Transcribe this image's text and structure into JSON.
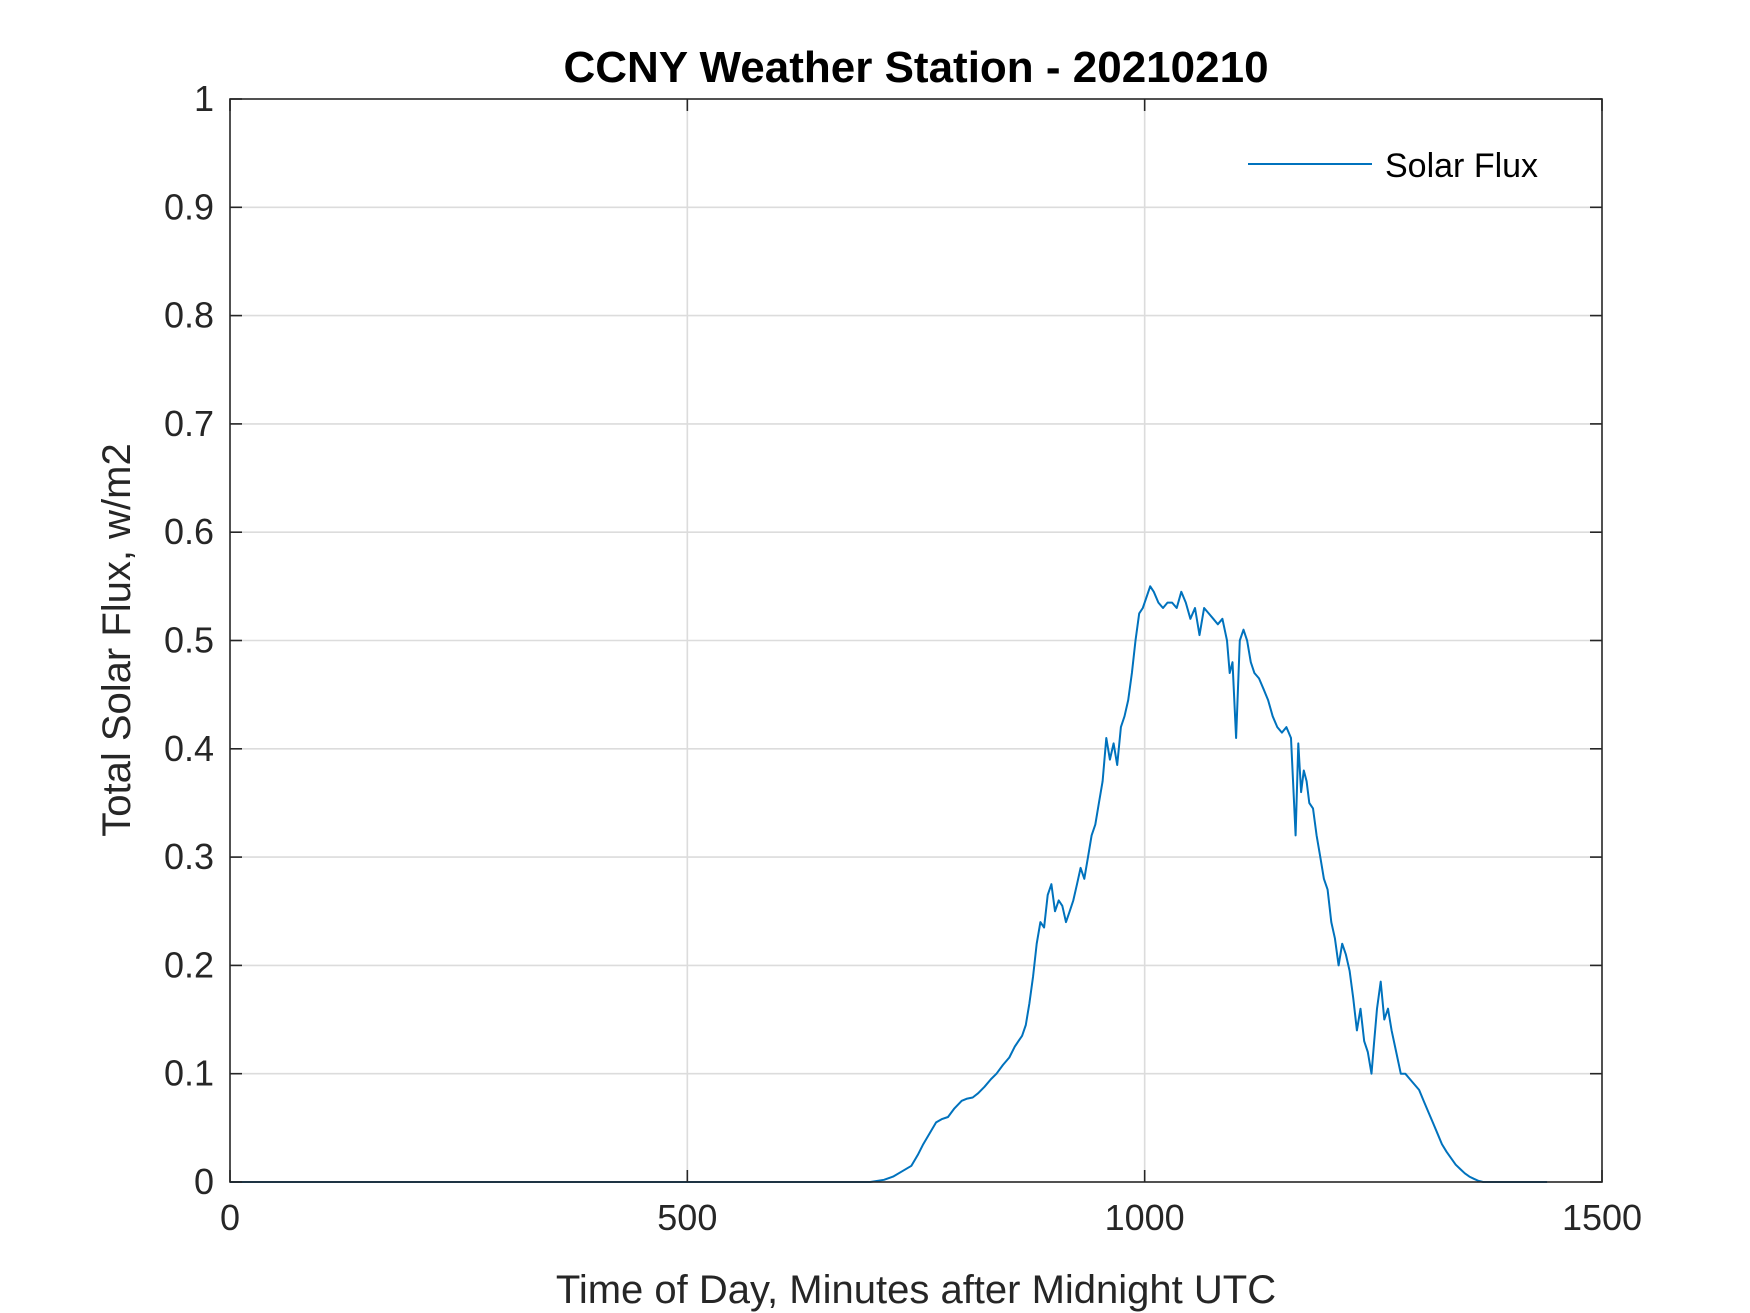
{
  "chart_data": {
    "type": "line",
    "title": "CCNY Weather Station - 20210210",
    "xlabel": "Time of Day, Minutes after Midnight UTC",
    "ylabel": "Total Solar Flux, w/m2",
    "xlim": [
      0,
      1500
    ],
    "ylim": [
      0,
      1
    ],
    "xticks": [
      0,
      500,
      1000,
      1500
    ],
    "xtick_labels": [
      "0",
      "500",
      "1000",
      "1500"
    ],
    "yticks": [
      0,
      0.1,
      0.2,
      0.3,
      0.4,
      0.5,
      0.6,
      0.7,
      0.8,
      0.9,
      1
    ],
    "ytick_labels": [
      "0",
      "0.1",
      "0.2",
      "0.3",
      "0.4",
      "0.5",
      "0.6",
      "0.7",
      "0.8",
      "0.9",
      "1"
    ],
    "grid": true,
    "legend": {
      "position": "top-right",
      "entries": [
        "Solar Flux"
      ]
    },
    "series": [
      {
        "name": "Solar Flux",
        "color": "#0072BD",
        "x": [
          0,
          100,
          200,
          300,
          400,
          500,
          600,
          700,
          715,
          725,
          735,
          745,
          752,
          758,
          765,
          772,
          778,
          785,
          792,
          800,
          806,
          812,
          818,
          825,
          832,
          838,
          845,
          852,
          858,
          862,
          866,
          870,
          874,
          878,
          882,
          886,
          890,
          894,
          898,
          902,
          906,
          910,
          914,
          918,
          922,
          926,
          930,
          934,
          938,
          942,
          946,
          950,
          954,
          958,
          962,
          966,
          970,
          974,
          978,
          982,
          986,
          990,
          994,
          998,
          1002,
          1006,
          1010,
          1015,
          1020,
          1025,
          1030,
          1035,
          1040,
          1045,
          1050,
          1055,
          1060,
          1065,
          1070,
          1075,
          1080,
          1085,
          1090,
          1093,
          1096,
          1100,
          1104,
          1108,
          1112,
          1116,
          1120,
          1125,
          1130,
          1135,
          1140,
          1145,
          1150,
          1155,
          1160,
          1165,
          1168,
          1171,
          1174,
          1177,
          1180,
          1184,
          1188,
          1192,
          1196,
          1200,
          1204,
          1208,
          1212,
          1216,
          1220,
          1224,
          1228,
          1232,
          1236,
          1240,
          1244,
          1248,
          1251,
          1254,
          1258,
          1262,
          1266,
          1270,
          1275,
          1280,
          1285,
          1290,
          1295,
          1300,
          1305,
          1310,
          1315,
          1320,
          1325,
          1330,
          1335,
          1340,
          1345,
          1350,
          1355,
          1360,
          1365,
          1370,
          1380,
          1400,
          1420,
          1440
        ],
        "y": [
          0,
          0,
          0,
          0,
          0,
          0,
          0,
          0,
          0.002,
          0.005,
          0.01,
          0.015,
          0.025,
          0.035,
          0.045,
          0.055,
          0.058,
          0.06,
          0.068,
          0.075,
          0.077,
          0.078,
          0.082,
          0.088,
          0.095,
          0.1,
          0.108,
          0.115,
          0.125,
          0.13,
          0.135,
          0.145,
          0.165,
          0.19,
          0.22,
          0.24,
          0.235,
          0.265,
          0.275,
          0.25,
          0.26,
          0.255,
          0.24,
          0.25,
          0.26,
          0.275,
          0.29,
          0.28,
          0.3,
          0.32,
          0.33,
          0.35,
          0.37,
          0.41,
          0.39,
          0.405,
          0.385,
          0.42,
          0.43,
          0.445,
          0.47,
          0.5,
          0.525,
          0.53,
          0.54,
          0.55,
          0.545,
          0.535,
          0.53,
          0.535,
          0.535,
          0.53,
          0.545,
          0.535,
          0.52,
          0.53,
          0.505,
          0.53,
          0.525,
          0.52,
          0.515,
          0.52,
          0.5,
          0.47,
          0.48,
          0.41,
          0.5,
          0.51,
          0.5,
          0.48,
          0.47,
          0.465,
          0.455,
          0.445,
          0.43,
          0.42,
          0.415,
          0.42,
          0.41,
          0.32,
          0.405,
          0.36,
          0.38,
          0.37,
          0.35,
          0.345,
          0.32,
          0.3,
          0.28,
          0.27,
          0.24,
          0.225,
          0.2,
          0.22,
          0.21,
          0.195,
          0.17,
          0.14,
          0.16,
          0.13,
          0.12,
          0.1,
          0.13,
          0.16,
          0.185,
          0.15,
          0.16,
          0.14,
          0.12,
          0.1,
          0.1,
          0.095,
          0.09,
          0.085,
          0.075,
          0.065,
          0.055,
          0.045,
          0.035,
          0.028,
          0.022,
          0.016,
          0.012,
          0.008,
          0.005,
          0.003,
          0.001,
          0,
          0,
          0,
          0,
          0
        ]
      }
    ]
  }
}
